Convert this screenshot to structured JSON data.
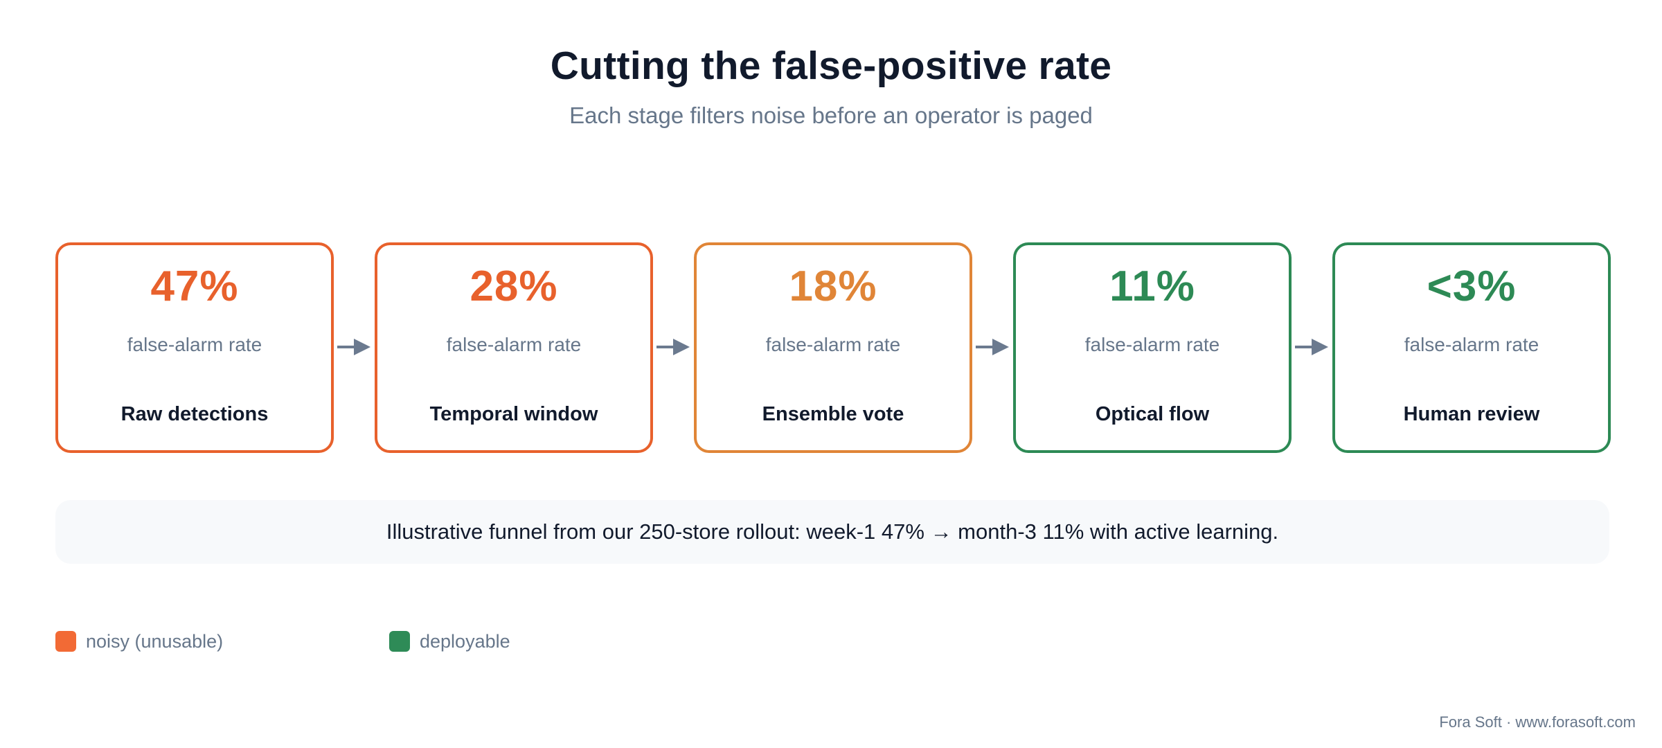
{
  "header": {
    "title": "Cutting the false-positive rate",
    "subtitle": "Each stage filters noise before an operator is paged"
  },
  "stages": [
    {
      "value": "47%",
      "metric": "false-alarm rate",
      "name": "Raw detections",
      "color": "#e8612c"
    },
    {
      "value": "28%",
      "metric": "false-alarm rate",
      "name": "Temporal window",
      "color": "#e8612c"
    },
    {
      "value": "18%",
      "metric": "false-alarm rate",
      "name": "Ensemble vote",
      "color": "#e08537"
    },
    {
      "value": "11%",
      "metric": "false-alarm rate",
      "name": "Optical flow",
      "color": "#2d8a55"
    },
    {
      "value": "<3%",
      "metric": "false-alarm rate",
      "name": "Human review",
      "color": "#2d8a55"
    }
  ],
  "note": "Illustrative funnel from our 250-store rollout: week-1 47% → month-3 11% with active learning.",
  "legend": [
    {
      "label": "noisy (unusable)",
      "color": "#f26a35"
    },
    {
      "label": "deployable",
      "color": "#2e8b57"
    }
  ],
  "footer": "Fora Soft · www.forasoft.com",
  "colors": {
    "arrow": "#6b7a8f"
  }
}
